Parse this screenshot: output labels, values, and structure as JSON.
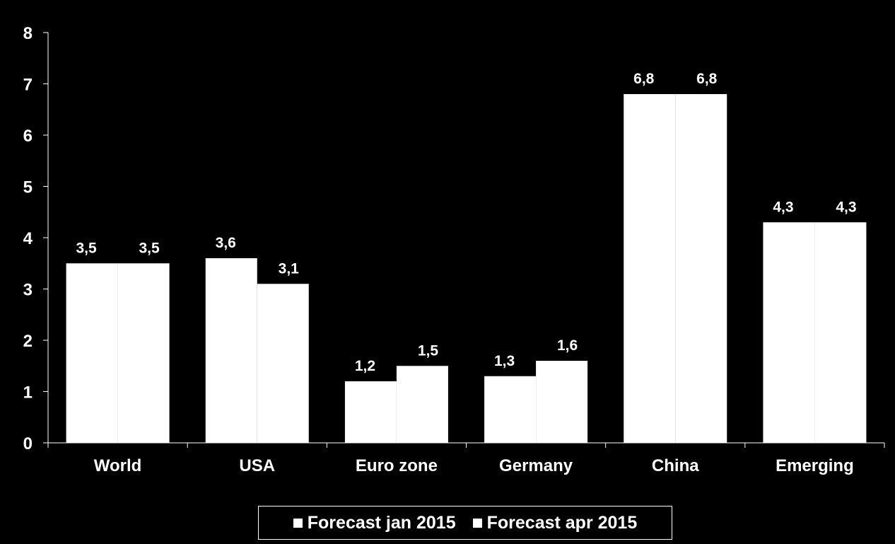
{
  "chart_data": {
    "type": "bar",
    "categories": [
      "World",
      "USA",
      "Euro zone",
      "Germany",
      "China",
      "Emerging"
    ],
    "series": [
      {
        "name": "Forecast jan 2015",
        "values": [
          3.5,
          3.6,
          1.2,
          1.3,
          6.8,
          4.3
        ],
        "labels": [
          "3,5",
          "3,6",
          "1,2",
          "1,3",
          "6,8",
          "4,3"
        ],
        "color": "#ffffff"
      },
      {
        "name": "Forecast apr 2015",
        "values": [
          3.5,
          3.1,
          1.5,
          1.6,
          6.8,
          4.3
        ],
        "labels": [
          "3,5",
          "3,1",
          "1,5",
          "1,6",
          "6,8",
          "4,3"
        ],
        "color": "#ffffff"
      }
    ],
    "yticks": [
      "0",
      "1",
      "2",
      "3",
      "4",
      "5",
      "6",
      "7",
      "8"
    ],
    "ylim": [
      0,
      8
    ],
    "grid": false,
    "legend_position": "bottom",
    "background": "#000000",
    "axis_color": "#ffffff"
  }
}
